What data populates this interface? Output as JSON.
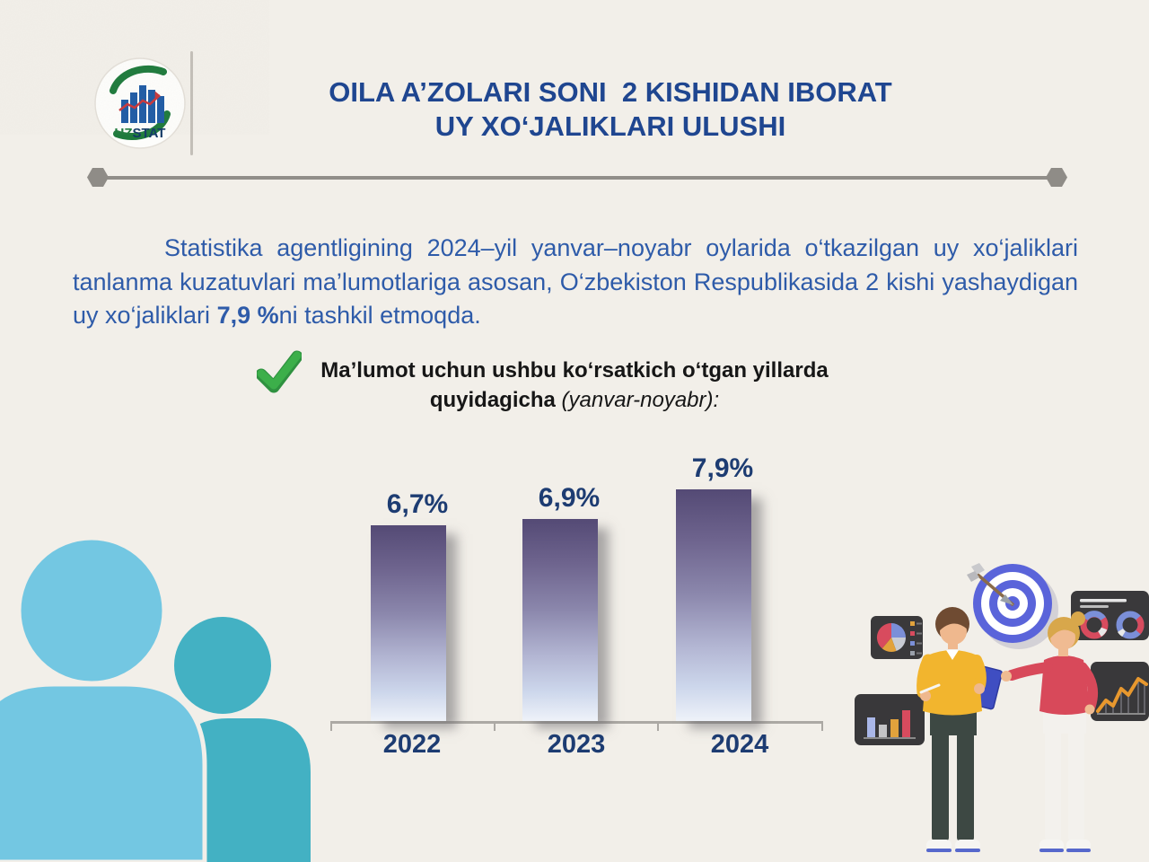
{
  "page": {
    "background": "#f2efe9"
  },
  "logo": {
    "uz": "UZ",
    "stat": "STAT",
    "uz_color": "#1e7a3c",
    "stat_color": "#123a66",
    "bars_color": "#1f5ba5",
    "swoosh_color": "#1e7a3c",
    "trend_color": "#c9383c"
  },
  "header": {
    "title_line1": "OILA A’ZOLARI SONI  2 KISHIDAN IBORAT",
    "title_line2": "UY XO‘JALIKLARI ULUSHI",
    "color": "#1f4690"
  },
  "intro": {
    "text": "Statistika agentligining 2024–yil yanvar–noyabr oylarida o‘tkazilgan uy xo‘jaliklari tanlanma kuzatuvlari ma’lumotlariga asosan, O‘zbekiston Respublikasida 2 kishi yashaydigan uy xo‘jaliklari ",
    "highlight": "7,9 %",
    "suffix": "ni tashkil etmoqda.",
    "color": "#2e5ba9"
  },
  "note": {
    "line1": "Ma’lumot uchun ushbu ko‘rsatkich o‘tgan yillarda",
    "line2_bold": "quyidagicha ",
    "line2_italic": "(yanvar-noyabr):",
    "check_color": "#3caf4a"
  },
  "chart_data": {
    "type": "bar",
    "categories": [
      "2022",
      "2023",
      "2024"
    ],
    "values": [
      6.7,
      6.9,
      7.9
    ],
    "value_labels": [
      "6,7%",
      "6,9%",
      "7,9%"
    ],
    "unit": "%",
    "ylim": [
      0,
      9
    ],
    "grid": false,
    "legend": false,
    "bar_gradient": [
      "#544a75",
      "#8b87ac",
      "#ccd6eb",
      "#eef2f9"
    ],
    "label_color": "#1d3c72",
    "axis_color": "#aca9a4"
  },
  "decorations": {
    "people_front_color": "#73c7e2",
    "people_back_color": "#43b1c3",
    "divider_color": "#918e89",
    "illustration": {
      "target_color": "#5a64da",
      "panel_color": "#3a393b",
      "accent_red": "#d84b5e",
      "accent_blue": "#7b8fd8",
      "accent_yellow": "#e2a23c",
      "man_sweater": "#f2b52e",
      "woman_blouse": "#d8495a"
    }
  }
}
